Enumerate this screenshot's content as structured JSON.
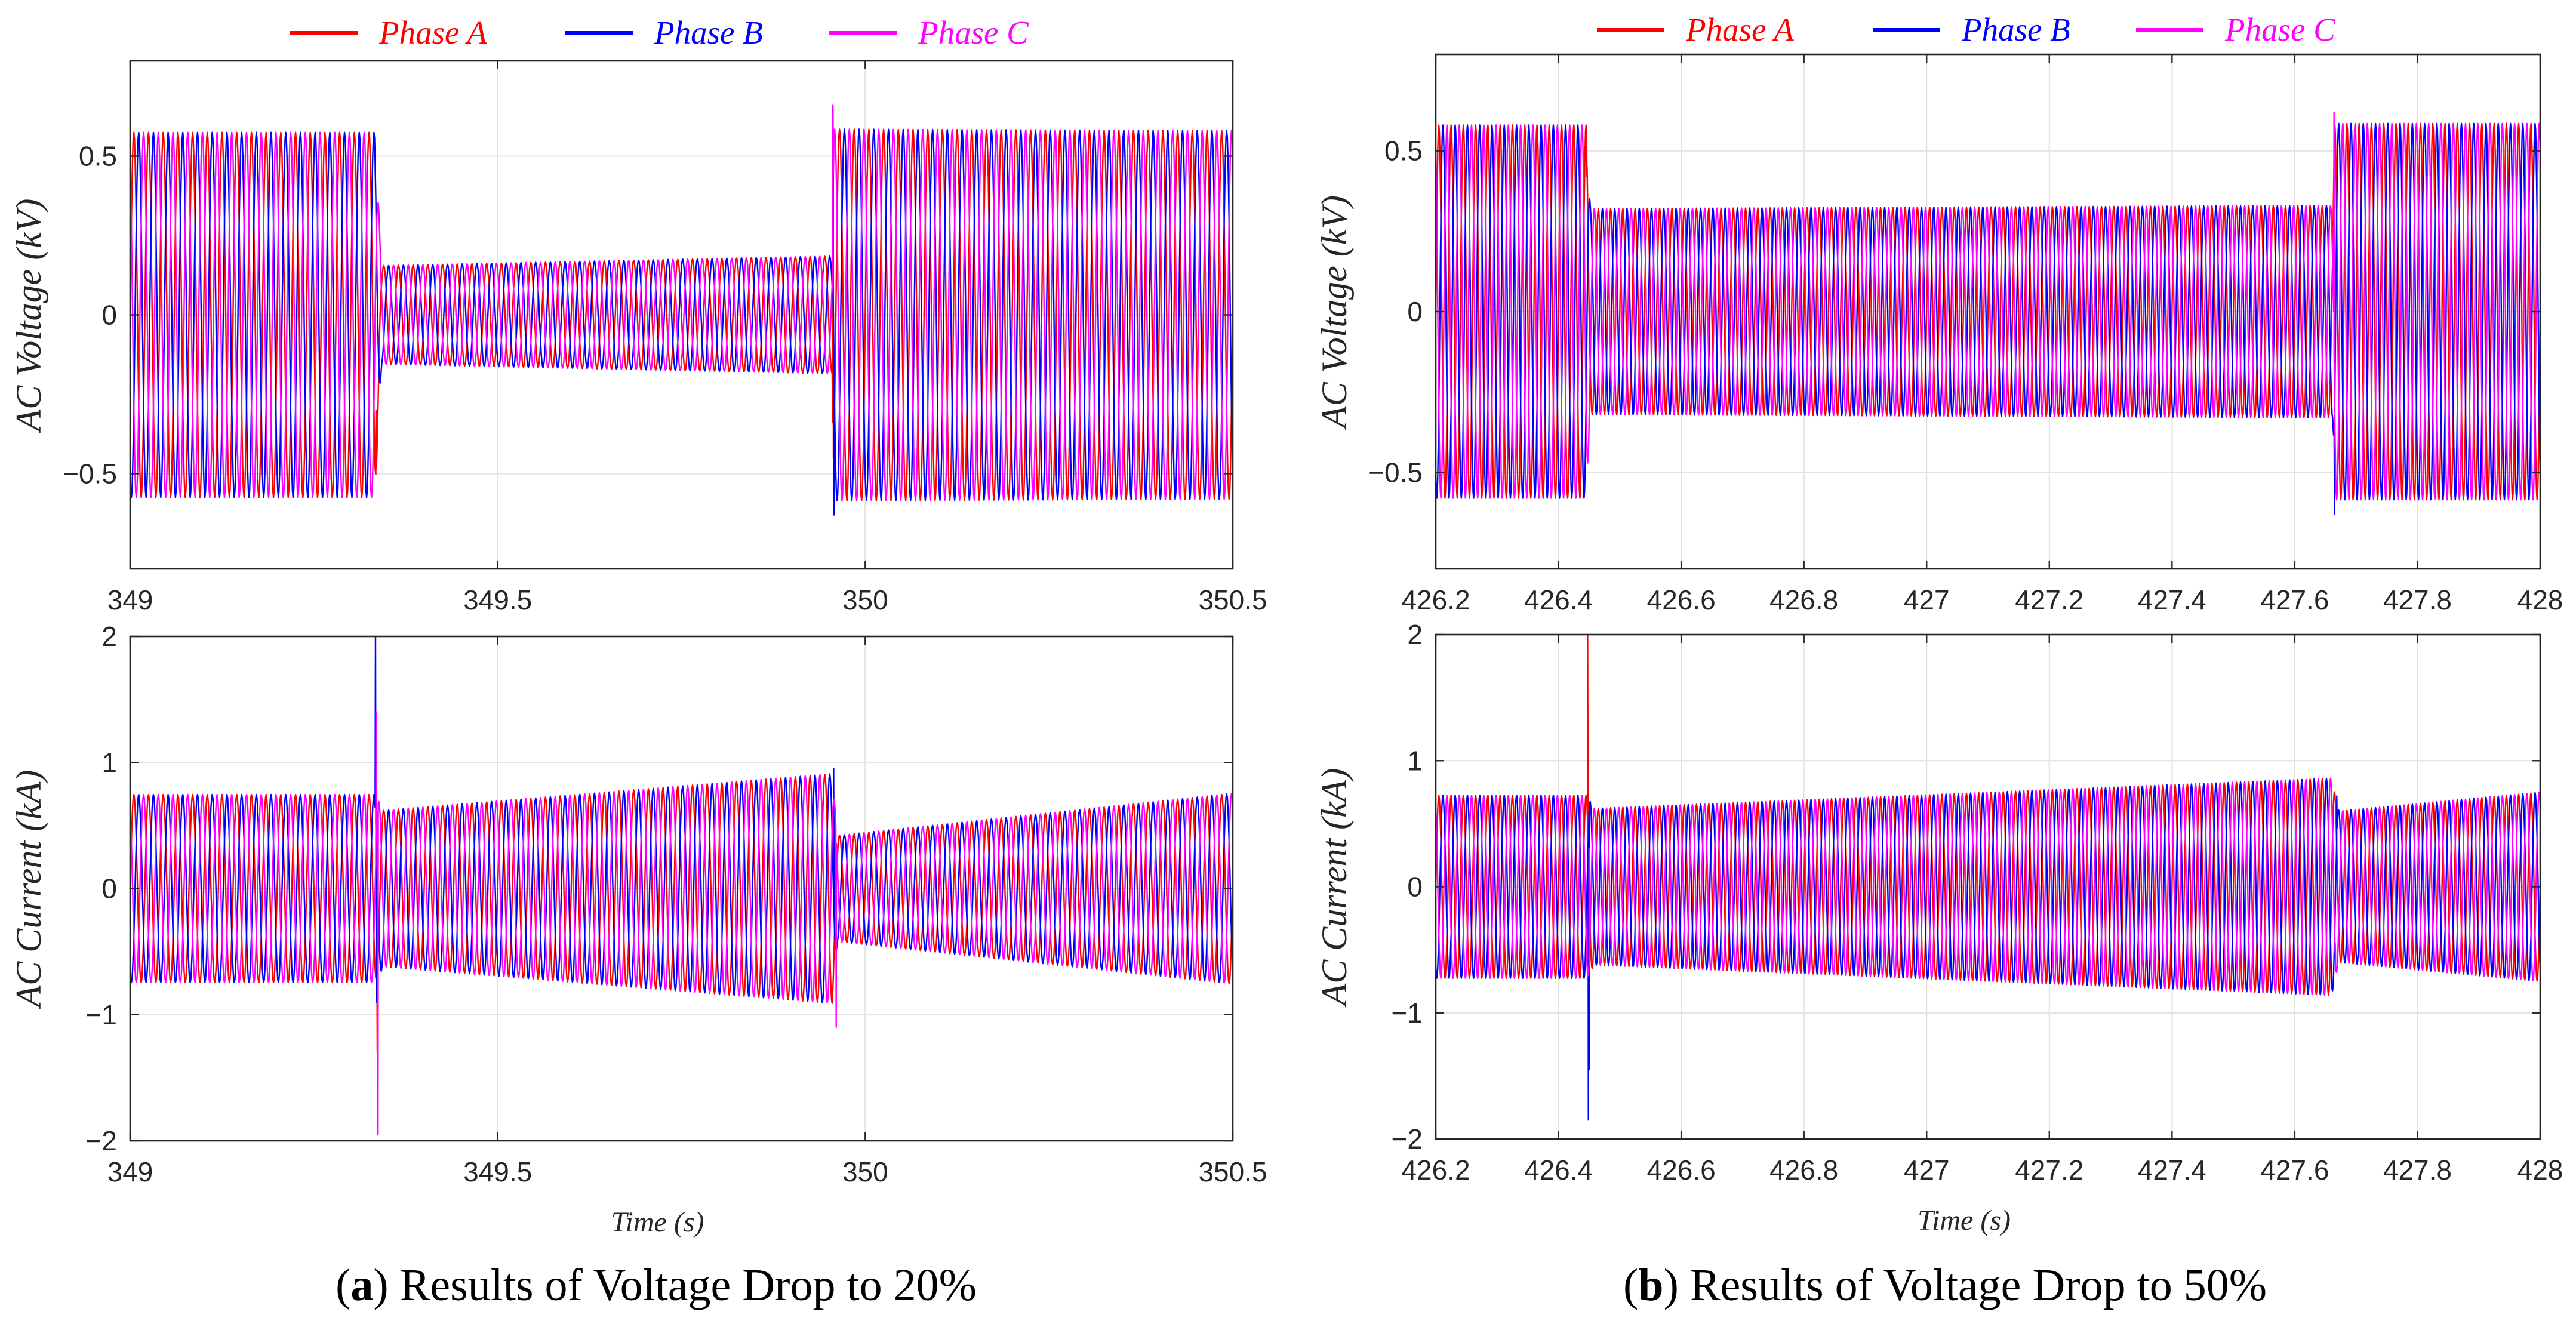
{
  "chart_data": [
    {
      "type": "line",
      "legend_position": "top",
      "caption": {
        "open": "(",
        "label": "a",
        "close": ")",
        "text": "Results of Voltage Drop to 20%"
      },
      "frequency_hz": 50,
      "series": [
        {
          "name": "Phase A",
          "color": "#ff0000",
          "phase_deg": 0
        },
        {
          "name": "Phase B",
          "color": "#0000ff",
          "phase_deg": -120
        },
        {
          "name": "Phase C",
          "color": "#ff00ff",
          "phase_deg": 120
        }
      ],
      "subplots": [
        {
          "ylabel": "AC Voltage (kV)",
          "xlabel": "",
          "xlim": [
            349,
            350.5
          ],
          "ylim": [
            -0.8,
            0.8
          ],
          "grid": true,
          "xticks": [
            349,
            349.5,
            350,
            350.5
          ],
          "xticklabels": [
            "349",
            "349.5",
            "350",
            "350.5"
          ],
          "yticks": [
            -0.5,
            0,
            0.5
          ],
          "yticklabels": [
            "−0.5",
            "0",
            "0.5"
          ],
          "envelope": [
            {
              "t0": 349.0,
              "t1": 349.333,
              "amp0": 0.575,
              "amp1": 0.575
            },
            {
              "t0": 349.342,
              "t1": 349.955,
              "amp0": 0.155,
              "amp1": 0.185
            },
            {
              "t0": 349.957,
              "t1": 350.5,
              "amp0": 0.585,
              "amp1": 0.58
            }
          ],
          "transients": [
            [
              {
                "t": 349.3345,
                "v": -0.3
              },
              {
                "t": 349.9565,
                "v": 0.45
              }
            ],
            [
              {
                "t": 349.3335,
                "v": 0.45
              },
              {
                "t": 349.9575,
                "v": -0.63
              }
            ],
            [
              {
                "t": 349.3355,
                "v": 0.3
              },
              {
                "t": 349.956,
                "v": 0.66
              }
            ]
          ]
        },
        {
          "ylabel": "AC Current (kA)",
          "xlabel": "Time (s)",
          "xlim": [
            349,
            350.5
          ],
          "ylim": [
            -2,
            2
          ],
          "grid": true,
          "xticks": [
            349,
            349.5,
            350,
            350.5
          ],
          "xticklabels": [
            "349",
            "349.5",
            "350",
            "350.5"
          ],
          "yticks": [
            -2,
            -1,
            0,
            1,
            2
          ],
          "yticklabels": [
            "−2",
            "−1",
            "0",
            "1",
            "2"
          ],
          "envelope": [
            {
              "t0": 349.0,
              "t1": 349.333,
              "amp0": 0.745,
              "amp1": 0.745
            },
            {
              "t0": 349.345,
              "t1": 349.955,
              "amp0": 0.62,
              "amp1": 0.91
            },
            {
              "t0": 349.962,
              "t1": 350.5,
              "amp0": 0.42,
              "amp1": 0.755
            }
          ],
          "transients": [
            [
              {
                "t": 349.3362,
                "v": -1.3
              },
              {
                "t": 349.9585,
                "v": 0.55
              }
            ],
            [
              {
                "t": 349.3338,
                "v": 2.0
              },
              {
                "t": 349.335,
                "v": -0.9
              },
              {
                "t": 349.957,
                "v": 0.95
              }
            ],
            [
              {
                "t": 349.3345,
                "v": 1.4
              },
              {
                "t": 349.3372,
                "v": -1.95
              },
              {
                "t": 349.9605,
                "v": -1.1
              }
            ]
          ]
        }
      ]
    },
    {
      "type": "line",
      "legend_position": "top",
      "caption": {
        "open": "(",
        "label": "b",
        "close": ")",
        "text": "Results of Voltage Drop to 50%"
      },
      "frequency_hz": 50,
      "series": [
        {
          "name": "Phase A",
          "color": "#ff0000",
          "phase_deg": 0
        },
        {
          "name": "Phase B",
          "color": "#0000ff",
          "phase_deg": -120
        },
        {
          "name": "Phase C",
          "color": "#ff00ff",
          "phase_deg": 120
        }
      ],
      "subplots": [
        {
          "ylabel": "AC Voltage (kV)",
          "xlabel": "",
          "xlim": [
            426.2,
            428
          ],
          "ylim": [
            -0.8,
            0.8
          ],
          "grid": true,
          "xticks": [
            426.2,
            426.4,
            426.6,
            426.8,
            427,
            427.2,
            427.4,
            427.6,
            427.8,
            428
          ],
          "xticklabels": [
            "426.2",
            "426.4",
            "426.6",
            "426.8",
            "427",
            "427.2",
            "427.4",
            "427.6",
            "427.8",
            "428"
          ],
          "yticks": [
            -0.5,
            0,
            0.5
          ],
          "yticklabels": [
            "−0.5",
            "0",
            "0.5"
          ],
          "envelope": [
            {
              "t0": 426.2,
              "t1": 426.445,
              "amp0": 0.58,
              "amp1": 0.58
            },
            {
              "t0": 426.452,
              "t1": 427.662,
              "amp0": 0.32,
              "amp1": 0.33
            },
            {
              "t0": 427.665,
              "t1": 428.0,
              "amp0": 0.585,
              "amp1": 0.585
            }
          ],
          "transients": [
            [
              {
                "t": 426.4465,
                "v": 0.42
              }
            ],
            [
              {
                "t": 427.6648,
                "v": -0.63
              }
            ],
            [
              {
                "t": 427.664,
                "v": 0.62
              }
            ]
          ]
        },
        {
          "ylabel": "AC Current (kA)",
          "xlabel": "Time (s)",
          "xlim": [
            426.2,
            428
          ],
          "ylim": [
            -2,
            2
          ],
          "grid": true,
          "xticks": [
            426.2,
            426.4,
            426.6,
            426.8,
            427,
            427.2,
            427.4,
            427.6,
            427.8,
            428
          ],
          "xticklabels": [
            "426.2",
            "426.4",
            "426.6",
            "426.8",
            "427",
            "427.2",
            "427.4",
            "427.6",
            "427.8",
            "428"
          ],
          "yticks": [
            -2,
            -1,
            0,
            1,
            2
          ],
          "yticklabels": [
            "−2",
            "−1",
            "0",
            "1",
            "2"
          ],
          "envelope": [
            {
              "t0": 426.2,
              "t1": 426.446,
              "amp0": 0.725,
              "amp1": 0.725
            },
            {
              "t0": 426.458,
              "t1": 427.66,
              "amp0": 0.62,
              "amp1": 0.86
            },
            {
              "t0": 427.672,
              "t1": 428.0,
              "amp0": 0.6,
              "amp1": 0.75
            }
          ],
          "transients": [
            [
              {
                "t": 426.4475,
                "v": 2.0
              },
              {
                "t": 426.449,
                "v": -0.4
              }
            ],
            [
              {
                "t": 426.4488,
                "v": -1.85
              },
              {
                "t": 426.4502,
                "v": -1.45
              },
              {
                "t": 427.6685,
                "v": 0.72
              }
            ],
            [
              {
                "t": 426.45,
                "v": 0.3
              },
              {
                "t": 427.666,
                "v": -0.45
              }
            ]
          ]
        }
      ]
    }
  ]
}
